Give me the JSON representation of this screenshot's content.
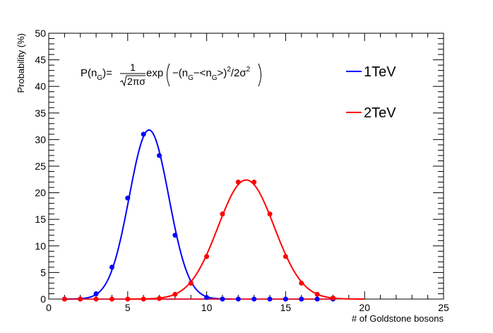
{
  "chart_data": {
    "type": "scatter",
    "xlabel": "# of Goldstone bosons",
    "ylabel": "Probability (%)",
    "xlim": [
      0,
      25
    ],
    "ylim": [
      0,
      50
    ],
    "xticks": [
      0,
      5,
      10,
      15,
      20,
      25
    ],
    "yticks": [
      0,
      5,
      10,
      15,
      20,
      25,
      30,
      35,
      40,
      45,
      50
    ],
    "grid": false,
    "legend_position": "top-right",
    "formula": {
      "lhs": "P(n",
      "lhs_sub": "G",
      "lhs_close": ")=",
      "numerator": "1",
      "denominator": "2πσ",
      "exp": "exp",
      "body_1": "−(n",
      "body_sub_1": "G",
      "body_2": "−<n",
      "body_sub_2": "G",
      "body_3": ">)",
      "sup_1": "2",
      "body_4": "/2σ",
      "sup_2": "2"
    },
    "series": [
      {
        "name": "1TeV",
        "color": "#0000ff",
        "points": [
          [
            1,
            0
          ],
          [
            2,
            0
          ],
          [
            3,
            1
          ],
          [
            4,
            6
          ],
          [
            5,
            19
          ],
          [
            6,
            31
          ],
          [
            7,
            27
          ],
          [
            8,
            12
          ],
          [
            9,
            3
          ],
          [
            10,
            0.3
          ],
          [
            11,
            0
          ],
          [
            12,
            0
          ],
          [
            13,
            0
          ],
          [
            14,
            0
          ],
          [
            15,
            0
          ],
          [
            16,
            0
          ],
          [
            17,
            0
          ],
          [
            18,
            0
          ]
        ],
        "fit": {
          "mean": 6.35,
          "sigma": 1.25,
          "peak": 31.8
        }
      },
      {
        "name": "2TeV",
        "color": "#ff0000",
        "points": [
          [
            1,
            0
          ],
          [
            2,
            0
          ],
          [
            3,
            0
          ],
          [
            4,
            0
          ],
          [
            5,
            0
          ],
          [
            6,
            0
          ],
          [
            7,
            0.1
          ],
          [
            8,
            0.9
          ],
          [
            9,
            3
          ],
          [
            10,
            8
          ],
          [
            11,
            16
          ],
          [
            12,
            22
          ],
          [
            13,
            22
          ],
          [
            14,
            16
          ],
          [
            15,
            8
          ],
          [
            16,
            3
          ],
          [
            17,
            0.9
          ],
          [
            18,
            0.2
          ]
        ],
        "fit": {
          "mean": 12.5,
          "sigma": 1.78,
          "peak": 22.4
        }
      }
    ]
  }
}
